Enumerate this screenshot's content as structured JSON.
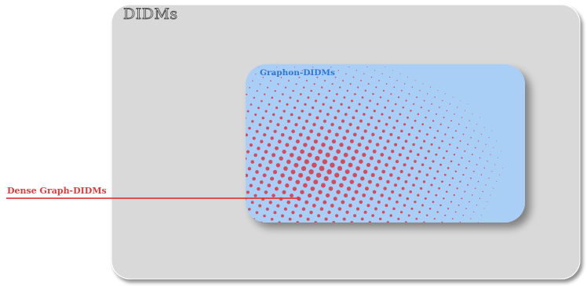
{
  "outer_set": {
    "label": "DIDMs",
    "fill": "#d9d9d9"
  },
  "inner_set": {
    "label": "Graphon-DIDMs",
    "fill": "#a9cff7",
    "label_color": "#2f78d6"
  },
  "dense_set": {
    "label": "Dense Graph-DIDMs",
    "color": "#e23b3b",
    "dot_color": "#d64a5a"
  }
}
